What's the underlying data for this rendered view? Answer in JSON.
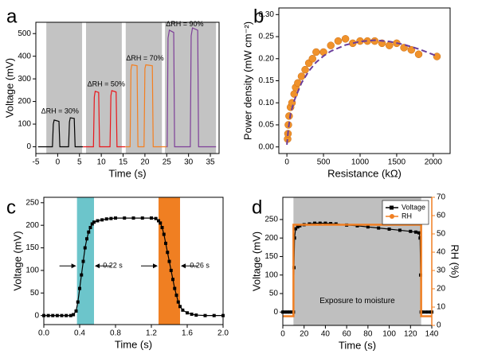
{
  "chart_data": [
    {
      "type": "line",
      "panel": "a",
      "x_label": "Time (s)",
      "y_label": "Voltage (mV)",
      "xlim": [
        -5,
        37
      ],
      "xticks": [
        -5,
        0,
        5,
        10,
        15,
        20,
        25,
        30,
        35
      ],
      "ylim": [
        -30,
        550
      ],
      "yticks": [
        0,
        100,
        200,
        300,
        400,
        500
      ],
      "spans": [
        {
          "from": -2.6,
          "to": 5.6,
          "color": "#c3c3c3"
        },
        {
          "from": 6.5,
          "to": 14.7,
          "color": "#c3c3c3"
        },
        {
          "from": 15.6,
          "to": 23.9,
          "color": "#c3c3c3"
        },
        {
          "from": 24.6,
          "to": 36.3,
          "color": "#c3c3c3"
        }
      ],
      "annotations": [
        "ΔRH = 30%",
        "ΔRH = 50%",
        "ΔRH = 70%",
        "ΔRH = 90%"
      ],
      "series": [
        {
          "color": "#000000",
          "x": [
            -4.5,
            -1.2,
            -1,
            -0.8,
            0.3,
            0.5,
            2.5,
            2.7,
            2.9,
            3.8,
            4,
            5.8
          ],
          "values": [
            0,
            0,
            100,
            118,
            112,
            0,
            0,
            110,
            128,
            125,
            0,
            0
          ]
        },
        {
          "color": "#e8161b",
          "x": [
            5.8,
            8.2,
            8.4,
            8.6,
            9.4,
            9.6,
            12,
            12.2,
            12.4,
            13.4,
            13.6,
            15.5
          ],
          "values": [
            0,
            0,
            220,
            245,
            240,
            0,
            0,
            225,
            248,
            242,
            0,
            0
          ]
        },
        {
          "color": "#f47f20",
          "x": [
            15.5,
            16.6,
            16.8,
            17,
            18.2,
            18.4,
            19.8,
            20,
            20.2,
            21.7,
            21.9,
            25
          ],
          "values": [
            0,
            0,
            340,
            362,
            358,
            0,
            0,
            345,
            362,
            358,
            0,
            0
          ]
        },
        {
          "color": "#7e3f98",
          "x": [
            25,
            25.1,
            25.3,
            25.6,
            26.6,
            26.8,
            30.4,
            30.6,
            30.9,
            32.1,
            32.3,
            36.3
          ],
          "values": [
            0,
            0,
            480,
            515,
            505,
            0,
            0,
            490,
            525,
            515,
            0,
            0
          ]
        }
      ]
    },
    {
      "type": "scatter",
      "panel": "b",
      "x_label": "Resistance (kΩ)",
      "y_label": "Power density (mW cm⁻²)",
      "xlim": [
        -110,
        2230
      ],
      "xticks": [
        0,
        500,
        1000,
        1500,
        2000
      ],
      "ylim": [
        -0.015,
        0.315
      ],
      "yticks": [
        {
          "value": 0,
          "label": "0.00"
        },
        0.05,
        {
          "value": 0.1,
          "label": "0.10"
        },
        0.15,
        {
          "value": 0.2,
          "label": "0.20"
        },
        0.25,
        {
          "value": 0.3,
          "label": "0.30"
        }
      ],
      "series": [
        {
          "type": "scatter",
          "color": "#f0922b",
          "x": [
            10,
            15,
            20,
            30,
            50,
            70,
            100,
            120,
            150,
            200,
            250,
            300,
            350,
            400,
            500,
            600,
            700,
            800,
            900,
            1000,
            1100,
            1200,
            1300,
            1400,
            1500,
            1600,
            1700,
            1800,
            2050
          ],
          "values": [
            0.018,
            0.03,
            0.05,
            0.07,
            0.09,
            0.1,
            0.12,
            0.135,
            0.145,
            0.16,
            0.175,
            0.19,
            0.2,
            0.215,
            0.215,
            0.23,
            0.24,
            0.245,
            0.235,
            0.24,
            0.24,
            0.24,
            0.235,
            0.23,
            0.235,
            0.225,
            0.22,
            0.21,
            0.205
          ]
        },
        {
          "type": "line",
          "dashed": true,
          "color": "#6a3d9a",
          "x": [
            0,
            20,
            50,
            100,
            200,
            300,
            400,
            500,
            600,
            800,
            1000,
            1200,
            1400,
            1600,
            1800,
            2050
          ],
          "values": [
            0.005,
            0.04,
            0.075,
            0.105,
            0.145,
            0.172,
            0.192,
            0.206,
            0.217,
            0.231,
            0.239,
            0.242,
            0.239,
            0.232,
            0.222,
            0.206
          ]
        }
      ]
    },
    {
      "type": "line",
      "panel": "c",
      "x_label": "Time (s)",
      "y_label": "Voltage (mV)",
      "xlim": [
        0,
        2
      ],
      "xticks": [
        {
          "value": 0,
          "label": "0.0"
        },
        0.4,
        0.8,
        1.2,
        1.6,
        {
          "value": 2,
          "label": "2.0"
        }
      ],
      "ylim": [
        -20,
        262
      ],
      "yticks": [
        0,
        50,
        100,
        150,
        200,
        250
      ],
      "spans": [
        {
          "from": 0.37,
          "to": 0.56,
          "color": "#6cc5cb"
        },
        {
          "from": 1.28,
          "to": 1.52,
          "color": "#f07f22"
        }
      ],
      "annotations": [
        "0.22 s",
        "0.26 s"
      ],
      "series": [
        {
          "color": "#000000",
          "marker": "square",
          "x": [
            0,
            0.05,
            0.1,
            0.15,
            0.2,
            0.25,
            0.3,
            0.33,
            0.36,
            0.38,
            0.4,
            0.42,
            0.44,
            0.46,
            0.48,
            0.5,
            0.52,
            0.54,
            0.56,
            0.6,
            0.65,
            0.7,
            0.75,
            0.8,
            0.9,
            1,
            1.1,
            1.2,
            1.25,
            1.28,
            1.3,
            1.32,
            1.34,
            1.36,
            1.38,
            1.4,
            1.42,
            1.44,
            1.46,
            1.48,
            1.5,
            1.52,
            1.55,
            1.6,
            1.65,
            1.7,
            1.8,
            1.9,
            2
          ],
          "values": [
            0,
            0,
            0,
            0,
            0,
            0,
            0,
            2,
            10,
            30,
            60,
            90,
            120,
            150,
            170,
            185,
            195,
            203,
            207,
            210,
            212,
            214,
            215,
            216,
            216,
            216,
            216,
            216,
            215,
            210,
            205,
            195,
            180,
            160,
            140,
            120,
            100,
            80,
            60,
            45,
            30,
            20,
            12,
            6,
            3,
            1,
            0,
            0,
            0
          ]
        }
      ]
    },
    {
      "type": "line",
      "panel": "d",
      "x_label": "Time (s)",
      "y_label": "Voltage (mV)",
      "y2_label": "RH (%)",
      "xlim": [
        0,
        140
      ],
      "xticks": [
        0,
        20,
        40,
        60,
        80,
        100,
        120,
        140
      ],
      "ylim": [
        -36,
        310
      ],
      "yticks": [
        0,
        50,
        100,
        150,
        200,
        250
      ],
      "y2lim": [
        0,
        70
      ],
      "y2ticks": [
        0,
        10,
        20,
        30,
        40,
        50,
        60,
        70
      ],
      "legend": "top-right",
      "spans": [
        {
          "from": 10,
          "to": 130,
          "color": "#bfbfbf"
        }
      ],
      "annotations": [
        "Exposure to moisture"
      ],
      "series": [
        {
          "name": "Voltage",
          "color": "#000000",
          "marker": "square",
          "x": [
            0,
            2,
            4,
            6,
            8,
            10,
            10.5,
            11,
            12,
            14,
            16,
            20,
            25,
            30,
            35,
            40,
            45,
            50,
            60,
            70,
            80,
            90,
            100,
            110,
            120,
            125,
            128,
            129,
            129.5,
            130,
            132,
            135,
            138,
            140
          ],
          "values": [
            0,
            0,
            0,
            0,
            0,
            0,
            120,
            200,
            225,
            230,
            233,
            236,
            238,
            240,
            240,
            240,
            239,
            238,
            235,
            233,
            230,
            227,
            224,
            221,
            218,
            216,
            214,
            200,
            100,
            0,
            0,
            0,
            0,
            0
          ]
        },
        {
          "name": "RH",
          "color": "#f07f22",
          "axis": "y2",
          "marker": "circle-legend",
          "x": [
            0,
            10,
            10,
            130,
            130,
            140
          ],
          "values": [
            5,
            5,
            55,
            55,
            5,
            5
          ]
        }
      ]
    }
  ]
}
